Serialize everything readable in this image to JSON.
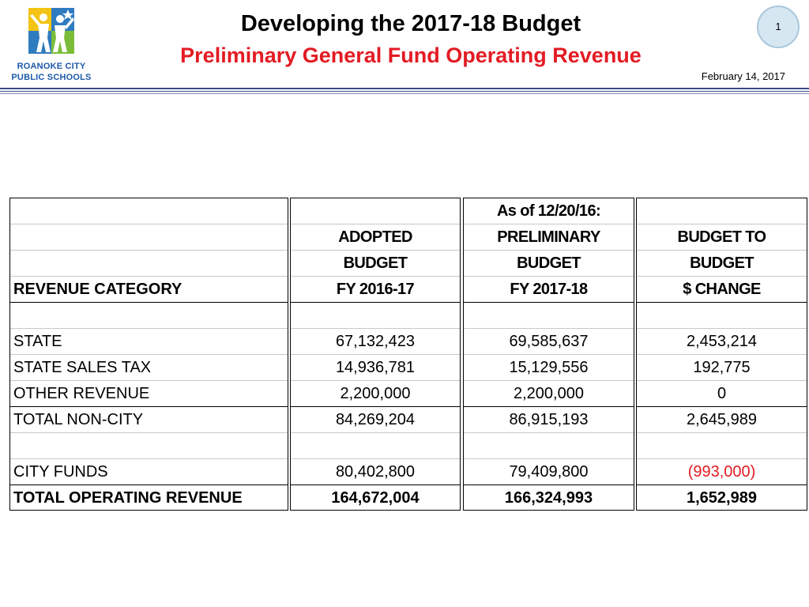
{
  "header": {
    "title": "Developing the 2017-18 Budget",
    "subtitle": "Preliminary General Fund Operating Revenue",
    "date": "February 14, 2017",
    "page_number": "1",
    "logo": {
      "line1": "ROANOKE CITY",
      "line2": "PUBLIC SCHOOLS",
      "icon": "roanoke-city-schools-logo"
    }
  },
  "colors": {
    "title": "#000000",
    "subtitle": "#e31b23",
    "negative": "#e31b23",
    "logo_blue": "#1d5aa8",
    "page_badge": "#d6e7f2",
    "rule": "#3a4a8c"
  },
  "table": {
    "headers": {
      "category": "REVENUE CATEGORY",
      "adopted": {
        "line1": "ADOPTED",
        "line2": "BUDGET",
        "line3": "FY 2016-17"
      },
      "preliminary": {
        "line0": "As of 12/20/16:",
        "line1": "PRELIMINARY",
        "line2": "BUDGET",
        "line3": "FY 2017-18"
      },
      "change": {
        "line1": "BUDGET TO",
        "line2": "BUDGET",
        "line3": "$ CHANGE"
      }
    },
    "rows": [
      {
        "category": "STATE",
        "adopted": "67,132,423",
        "preliminary": "69,585,637",
        "change": "2,453,214"
      },
      {
        "category": "STATE SALES TAX",
        "adopted": "14,936,781",
        "preliminary": "15,129,556",
        "change": "192,775"
      },
      {
        "category": "OTHER REVENUE",
        "adopted": "2,200,000",
        "preliminary": "2,200,000",
        "change": "0"
      },
      {
        "category": "TOTAL NON-CITY",
        "adopted": "84,269,204",
        "preliminary": "86,915,193",
        "change": "2,645,989"
      },
      {
        "category": "CITY FUNDS",
        "adopted": "80,402,800",
        "preliminary": "79,409,800",
        "change": "(993,000)"
      },
      {
        "category": "TOTAL OPERATING REVENUE",
        "adopted": "164,672,004",
        "preliminary": "166,324,993",
        "change": "1,652,989"
      }
    ]
  }
}
